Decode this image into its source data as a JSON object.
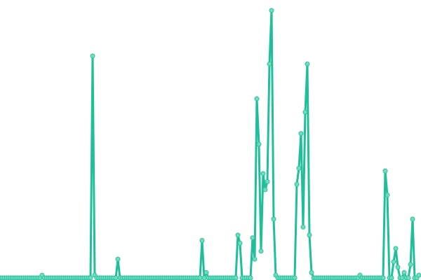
{
  "chart_data": {
    "type": "line",
    "title": "",
    "xlabel": "",
    "ylabel": "",
    "ylim": [
      0,
      100
    ],
    "grid": false,
    "markers": true,
    "colors": {
      "line": "#1fbf99",
      "marker_fill": "#6fdcbc",
      "marker_stroke": "#2cc29f"
    },
    "series": [
      {
        "values": [
          0,
          0,
          0,
          0,
          0,
          0,
          0,
          0,
          0,
          0,
          0,
          0,
          0,
          0,
          0,
          0,
          0,
          0,
          0,
          0,
          1,
          0,
          0,
          0,
          0,
          0,
          0,
          0,
          0,
          0,
          0,
          0,
          0,
          0,
          0,
          0,
          0,
          0,
          0,
          0,
          0,
          0,
          0,
          0,
          83,
          1,
          0,
          0,
          0,
          0,
          0,
          0,
          0,
          0,
          0,
          0,
          7,
          0,
          0,
          0,
          0,
          0,
          0,
          0,
          0,
          0,
          0,
          0,
          0,
          0,
          0,
          0,
          0,
          0,
          0,
          0,
          0,
          0,
          0,
          0,
          0,
          0,
          0,
          0,
          0,
          0,
          0,
          0,
          0,
          0,
          0,
          0,
          0,
          0,
          0,
          0,
          14,
          0,
          2,
          0,
          0,
          0,
          0,
          0,
          0,
          0,
          0,
          0,
          0,
          0,
          0,
          0,
          0,
          16,
          13,
          0,
          0,
          0,
          0,
          0,
          15,
          7,
          67,
          50,
          10,
          39,
          33,
          36,
          80,
          100,
          22,
          1,
          0,
          0,
          0,
          0,
          0,
          0,
          0,
          0,
          0,
          35,
          41,
          54,
          19,
          62,
          80,
          16,
          2,
          0,
          0,
          0,
          0,
          0,
          0,
          0,
          0,
          0,
          0,
          0,
          0,
          0,
          0,
          0,
          0,
          0,
          0,
          0,
          0,
          0,
          0,
          1,
          0,
          0,
          0,
          0,
          0,
          0,
          0,
          0,
          0,
          0,
          0,
          40,
          31,
          0,
          0,
          6,
          11,
          4,
          0,
          0,
          2,
          0,
          0,
          5,
          22,
          0,
          0,
          1
        ]
      }
    ]
  }
}
